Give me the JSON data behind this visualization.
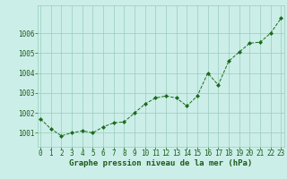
{
  "x": [
    0,
    1,
    2,
    3,
    4,
    5,
    6,
    7,
    8,
    9,
    10,
    11,
    12,
    13,
    14,
    15,
    16,
    17,
    18,
    19,
    20,
    21,
    22,
    23
  ],
  "y": [
    1001.7,
    1001.2,
    1000.85,
    1001.0,
    1001.1,
    1001.0,
    1001.3,
    1001.5,
    1001.55,
    1002.0,
    1002.45,
    1002.75,
    1002.85,
    1002.75,
    1002.35,
    1002.85,
    1004.0,
    1003.4,
    1004.6,
    1005.05,
    1005.5,
    1005.55,
    1006.0,
    1006.75
  ],
  "line_color": "#1a6b1a",
  "marker": "D",
  "marker_size": 2.0,
  "bg_color": "#cceee8",
  "grid_color": "#99ccbb",
  "xlabel": "Graphe pression niveau de la mer (hPa)",
  "xlabel_color": "#1a5c1a",
  "xlabel_fontsize": 6.5,
  "ylabel_ticks": [
    1001,
    1002,
    1003,
    1004,
    1005,
    1006
  ],
  "ylim": [
    1000.3,
    1007.4
  ],
  "xlim": [
    -0.3,
    23.3
  ],
  "tick_color": "#1a5c1a",
  "tick_fontsize": 5.5,
  "xtick_labels": [
    "0",
    "1",
    "2",
    "3",
    "4",
    "5",
    "6",
    "7",
    "8",
    "9",
    "10",
    "11",
    "12",
    "13",
    "14",
    "15",
    "16",
    "17",
    "18",
    "19",
    "20",
    "21",
    "22",
    "23"
  ]
}
